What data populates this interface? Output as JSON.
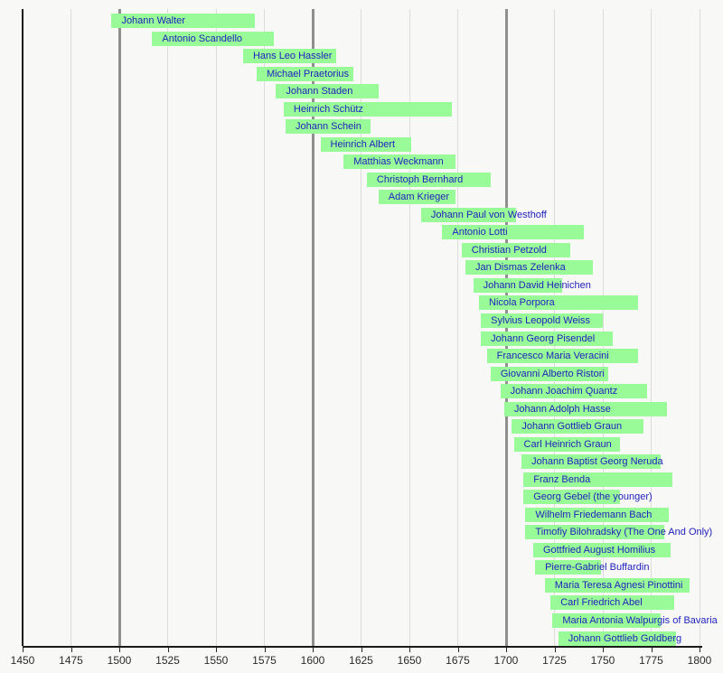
{
  "chart_data": {
    "type": "bar",
    "variant": "horizontal-timeline",
    "title": "",
    "xlabel": "",
    "ylabel": "",
    "x_axis": {
      "min": 1450,
      "max": 1800,
      "tick_interval": 25,
      "tick_labels": [
        "1450",
        "1475",
        "1500",
        "1525",
        "1550",
        "1575",
        "1600",
        "1625",
        "1650",
        "1675",
        "1700",
        "1725",
        "1750",
        "1775",
        "1800"
      ],
      "emphasized_gridlines": [
        1500,
        1600,
        1700
      ],
      "minor_gridlines": [
        1475,
        1525,
        1550,
        1575,
        1625,
        1650,
        1675,
        1725,
        1750,
        1775,
        1800
      ],
      "spine_year": 1450,
      "grid": true
    },
    "series": [
      {
        "name": "Johann Walter",
        "start": 1496,
        "end": 1570
      },
      {
        "name": "Antonio Scandello",
        "start": 1517,
        "end": 1580
      },
      {
        "name": "Hans Leo Hassler",
        "start": 1564,
        "end": 1612
      },
      {
        "name": "Michael Praetorius",
        "start": 1571,
        "end": 1621
      },
      {
        "name": "Johann Staden",
        "start": 1581,
        "end": 1634
      },
      {
        "name": "Heinrich Schütz",
        "start": 1585,
        "end": 1672
      },
      {
        "name": "Johann Schein",
        "start": 1586,
        "end": 1630
      },
      {
        "name": "Heinrich Albert",
        "start": 1604,
        "end": 1651
      },
      {
        "name": "Matthias Weckmann",
        "start": 1616,
        "end": 1674
      },
      {
        "name": "Christoph Bernhard",
        "start": 1628,
        "end": 1692
      },
      {
        "name": "Adam Krieger",
        "start": 1634,
        "end": 1674
      },
      {
        "name": "Johann Paul von Westhoff",
        "start": 1656,
        "end": 1705
      },
      {
        "name": "Antonio Lotti",
        "start": 1667,
        "end": 1740
      },
      {
        "name": "Christian Petzold",
        "start": 1677,
        "end": 1733
      },
      {
        "name": "Jan Dismas Zelenka",
        "start": 1679,
        "end": 1745
      },
      {
        "name": "Johann David Heinichen",
        "start": 1683,
        "end": 1729
      },
      {
        "name": "Nicola Porpora",
        "start": 1686,
        "end": 1768
      },
      {
        "name": "Sylvius Leopold Weiss",
        "start": 1687,
        "end": 1750
      },
      {
        "name": "Johann Georg Pisendel",
        "start": 1687,
        "end": 1755
      },
      {
        "name": "Francesco Maria Veracini",
        "start": 1690,
        "end": 1768
      },
      {
        "name": "Giovanni Alberto Ristori",
        "start": 1692,
        "end": 1753
      },
      {
        "name": "Johann Joachim Quantz",
        "start": 1697,
        "end": 1773
      },
      {
        "name": "Johann Adolph Hasse",
        "start": 1699,
        "end": 1783
      },
      {
        "name": "Johann Gottlieb Graun",
        "start": 1703,
        "end": 1771
      },
      {
        "name": "Carl Heinrich Graun",
        "start": 1704,
        "end": 1759
      },
      {
        "name": "Johann Baptist Georg Neruda",
        "start": 1708,
        "end": 1780
      },
      {
        "name": "Franz Benda",
        "start": 1709,
        "end": 1786
      },
      {
        "name": "Georg Gebel (the younger)",
        "start": 1709,
        "end": 1759
      },
      {
        "name": "Wilhelm Friedemann Bach",
        "start": 1710,
        "end": 1784
      },
      {
        "name": "Timofiy Bilohradsky (The One And Only)",
        "start": 1710,
        "end": 1782
      },
      {
        "name": "Gottfried August Homilius",
        "start": 1714,
        "end": 1785
      },
      {
        "name": "Pierre-Gabriel Buffardin",
        "start": 1715,
        "end": 1749
      },
      {
        "name": "Maria Teresa Agnesi Pinottini",
        "start": 1720,
        "end": 1795
      },
      {
        "name": "Carl Friedrich Abel",
        "start": 1723,
        "end": 1787
      },
      {
        "name": "Maria Antonia Walpurgis of Bavaria",
        "start": 1724,
        "end": 1780
      },
      {
        "name": "Johann Gottlieb Goldberg",
        "start": 1727,
        "end": 1788
      }
    ],
    "colors": {
      "background": "#f8f8f7",
      "bar": "#98fb98",
      "bar_label": "#2121bd",
      "axis": "#1a1a1a",
      "tick_label": "#2a2a2a",
      "minor_gridline": "#dcdcdc",
      "major_gridline": "#8f8f8f"
    },
    "legend": null
  }
}
